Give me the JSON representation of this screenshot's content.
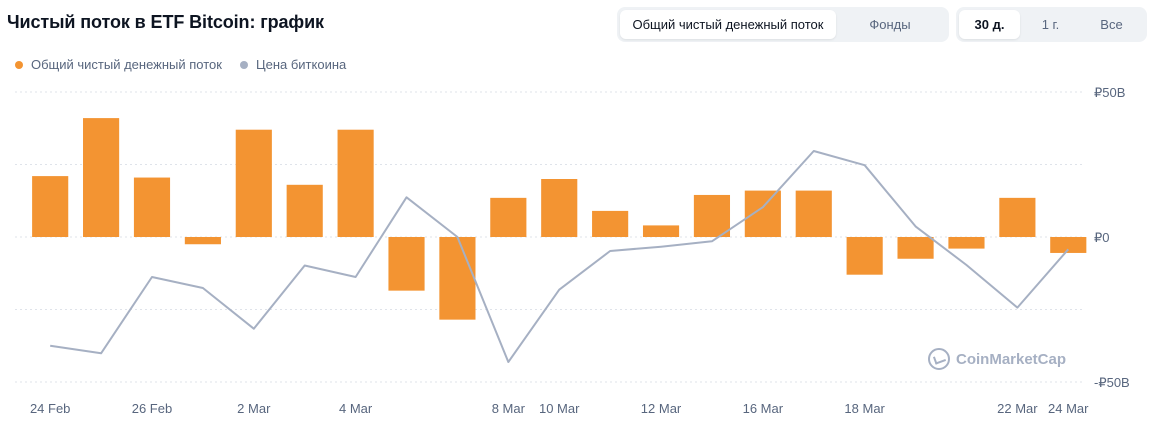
{
  "header": {
    "title": "Чистый поток в ETF Bitcoin: график",
    "metric_tabs": [
      "Общий чистый денежный поток",
      "Фонды"
    ],
    "metric_active": 0,
    "range_tabs": [
      "30 д.",
      "1 г.",
      "Все"
    ],
    "range_active": 0
  },
  "legend": [
    {
      "label": "Общий чистый денежный поток",
      "color": "#f39432"
    },
    {
      "label": "Цена биткоина",
      "color": "#a6b0c3"
    }
  ],
  "watermark": "CoinMarketCap",
  "chart_data": {
    "type": "bar",
    "x_ticks": [
      "24 Feb",
      "26 Feb",
      "2 Mar",
      "4 Mar",
      "8 Mar",
      "10 Mar",
      "12 Mar",
      "16 Mar",
      "18 Mar",
      "22 Mar",
      "24 Mar"
    ],
    "y_ticks": [
      "₽50B",
      "₽0",
      "-₽50B"
    ],
    "ylim": [
      -50,
      50
    ],
    "grid": true,
    "legend_position": "top-left",
    "series": [
      {
        "name": "Общий чистый денежный поток",
        "type": "bar",
        "color": "#f39432",
        "points": [
          {
            "x": "24 Feb",
            "y": 21
          },
          {
            "x": "25 Feb",
            "y": 41
          },
          {
            "x": "26 Feb",
            "y": 20.5
          },
          {
            "x": "27 Feb",
            "y": -2.5
          },
          {
            "x": "2 Mar",
            "y": 37
          },
          {
            "x": "3 Mar",
            "y": 18
          },
          {
            "x": "4 Mar",
            "y": 37
          },
          {
            "x": "5 Mar",
            "y": -18.5
          },
          {
            "x": "7 Mar",
            "y": -28.5
          },
          {
            "x": "8 Mar",
            "y": 13.5
          },
          {
            "x": "10 Mar",
            "y": 20
          },
          {
            "x": "11 Mar",
            "y": 9
          },
          {
            "x": "12 Mar",
            "y": 4
          },
          {
            "x": "15 Mar",
            "y": 14.5
          },
          {
            "x": "16 Mar",
            "y": 16
          },
          {
            "x": "17 Mar",
            "y": 16
          },
          {
            "x": "18 Mar",
            "y": -13
          },
          {
            "x": "19 Mar",
            "y": -7.5
          },
          {
            "x": "20 Mar",
            "y": -4
          },
          {
            "x": "22 Mar",
            "y": 13.5
          },
          {
            "x": "24 Mar",
            "y": -5.5
          }
        ]
      },
      {
        "name": "Цена биткоина",
        "type": "line",
        "color": "#a6b0c3",
        "relative_level": [
          0.099,
          0.053,
          0.516,
          0.449,
          0.202,
          0.586,
          0.516,
          1.0,
          0.759,
          0.0,
          0.439,
          0.674,
          0.7,
          0.733,
          0.94,
          1.281,
          1.195,
          0.823,
          0.589,
          0.33,
          0.684
        ]
      }
    ]
  }
}
